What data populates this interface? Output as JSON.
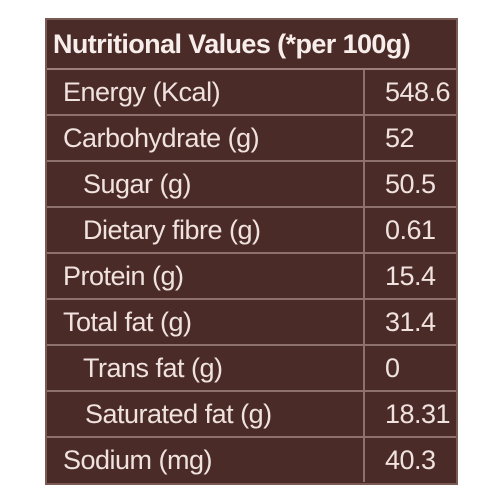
{
  "header": {
    "title": "Nutritional Values (*per 100g)"
  },
  "table": {
    "rows": [
      [
        "Energy (Kcal)",
        "548.6"
      ],
      [
        "Carbohydrate (g)",
        "52"
      ],
      [
        "Sugar (g)",
        "50.5"
      ],
      [
        "Dietary fibre (g)",
        "0.61"
      ],
      [
        "Protein (g)",
        "15.4"
      ],
      [
        "Total fat (g)",
        "31.4"
      ],
      [
        "Trans fat (g)",
        "0"
      ],
      [
        "Saturated fat (g)",
        "18.31"
      ],
      [
        "Sodium (mg)",
        "40.3"
      ]
    ]
  }
}
